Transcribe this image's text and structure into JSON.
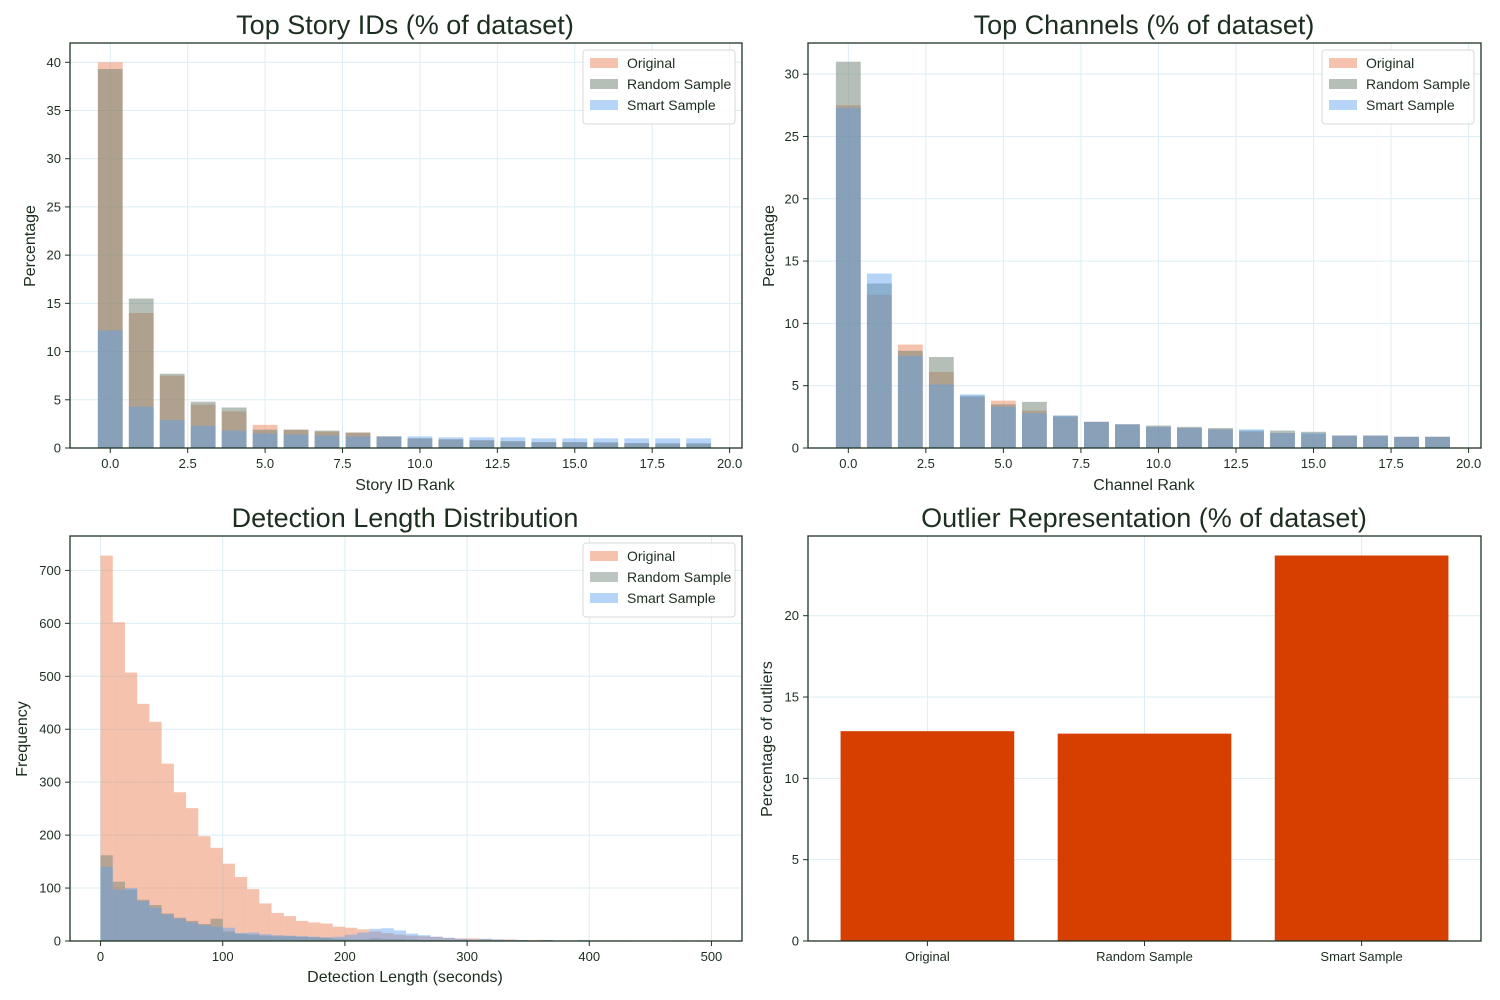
{
  "colors": {
    "original": "#e8784c",
    "random": "#6b7f70",
    "smart": "#5aa0ee",
    "outlier_bar": "#d63f00",
    "text": "#1c2e1f",
    "grid": "#dceef3",
    "frame": "#1f3324"
  },
  "chart_data": [
    {
      "id": "story",
      "type": "bar",
      "title": "Top Story IDs (% of dataset)",
      "xlabel": "Story ID Rank",
      "ylabel": "Percentage",
      "xlim": [
        -1.3,
        20.4
      ],
      "ylim": [
        0,
        42
      ],
      "xticks": [
        0,
        2.5,
        5,
        7.5,
        10,
        12.5,
        15,
        17.5,
        20
      ],
      "xtick_labels": [
        "0.0",
        "2.5",
        "5.0",
        "7.5",
        "10.0",
        "12.5",
        "15.0",
        "17.5",
        "20.0"
      ],
      "yticks": [
        0,
        5,
        10,
        15,
        20,
        25,
        30,
        35,
        40
      ],
      "ytick_labels": [
        "0",
        "5",
        "10",
        "15",
        "20",
        "25",
        "30",
        "35",
        "40"
      ],
      "bar_width": 0.8,
      "grid": true,
      "legend": "top-right",
      "x": [
        0,
        1,
        2,
        3,
        4,
        5,
        6,
        7,
        8,
        9,
        10,
        11,
        12,
        13,
        14,
        15,
        16,
        17,
        18,
        19
      ],
      "series": [
        {
          "name": "Original",
          "color_key": "original",
          "opacity": 0.45,
          "values": [
            40.0,
            14.0,
            7.5,
            4.5,
            3.8,
            2.4,
            1.9,
            1.7,
            1.6,
            1.2,
            1.0,
            0.9,
            0.8,
            0.7,
            0.6,
            0.6,
            0.5,
            0.5,
            0.4,
            0.4
          ]
        },
        {
          "name": "Random Sample",
          "color_key": "random",
          "opacity": 0.5,
          "values": [
            39.3,
            15.5,
            7.7,
            4.8,
            4.2,
            1.9,
            1.9,
            1.8,
            1.6,
            1.2,
            1.0,
            0.9,
            0.8,
            0.7,
            0.6,
            0.6,
            0.6,
            0.5,
            0.5,
            0.5
          ]
        },
        {
          "name": "Smart Sample",
          "color_key": "smart",
          "opacity": 0.45,
          "values": [
            12.2,
            4.3,
            2.9,
            2.3,
            1.8,
            1.5,
            1.4,
            1.3,
            1.2,
            1.2,
            1.2,
            1.1,
            1.1,
            1.1,
            1.0,
            1.0,
            1.0,
            1.0,
            1.0,
            1.0
          ]
        }
      ]
    },
    {
      "id": "channel",
      "type": "bar",
      "title": "Top Channels (% of dataset)",
      "xlabel": "Channel Rank",
      "ylabel": "Percentage",
      "xlim": [
        -1.3,
        20.4
      ],
      "ylim": [
        0,
        32.5
      ],
      "xticks": [
        0,
        2.5,
        5,
        7.5,
        10,
        12.5,
        15,
        17.5,
        20
      ],
      "xtick_labels": [
        "0.0",
        "2.5",
        "5.0",
        "7.5",
        "10.0",
        "12.5",
        "15.0",
        "17.5",
        "20.0"
      ],
      "yticks": [
        0,
        5,
        10,
        15,
        20,
        25,
        30
      ],
      "ytick_labels": [
        "0",
        "5",
        "10",
        "15",
        "20",
        "25",
        "30"
      ],
      "bar_width": 0.8,
      "grid": true,
      "legend": "top-right",
      "x": [
        0,
        1,
        2,
        3,
        4,
        5,
        6,
        7,
        8,
        9,
        10,
        11,
        12,
        13,
        14,
        15,
        16,
        17,
        18,
        19
      ],
      "series": [
        {
          "name": "Original",
          "color_key": "original",
          "opacity": 0.45,
          "values": [
            27.5,
            12.3,
            8.3,
            6.1,
            4.1,
            3.8,
            3.0,
            2.5,
            2.1,
            1.9,
            1.7,
            1.6,
            1.5,
            1.3,
            1.2,
            1.1,
            1.0,
            1.0,
            0.9,
            0.9
          ]
        },
        {
          "name": "Random Sample",
          "color_key": "random",
          "opacity": 0.5,
          "values": [
            31.0,
            13.2,
            7.8,
            7.3,
            4.2,
            3.5,
            3.7,
            2.6,
            2.1,
            1.9,
            1.8,
            1.7,
            1.6,
            1.4,
            1.4,
            1.3,
            1.0,
            1.0,
            0.9,
            0.9
          ]
        },
        {
          "name": "Smart Sample",
          "color_key": "smart",
          "opacity": 0.45,
          "values": [
            27.3,
            14.0,
            7.4,
            5.1,
            4.3,
            3.3,
            2.8,
            2.6,
            2.1,
            1.9,
            1.7,
            1.6,
            1.5,
            1.5,
            1.2,
            1.2,
            1.0,
            1.0,
            0.9,
            0.9
          ]
        }
      ]
    },
    {
      "id": "detection",
      "type": "histogram",
      "title": "Detection Length Distribution",
      "xlabel": "Detection Length (seconds)",
      "ylabel": "Frequency",
      "xlim": [
        -25,
        525
      ],
      "ylim": [
        0,
        765
      ],
      "xticks": [
        0,
        100,
        200,
        300,
        400,
        500
      ],
      "xtick_labels": [
        "0",
        "100",
        "200",
        "300",
        "400",
        "500"
      ],
      "yticks": [
        0,
        100,
        200,
        300,
        400,
        500,
        600,
        700
      ],
      "ytick_labels": [
        "0",
        "100",
        "200",
        "300",
        "400",
        "500",
        "600",
        "700"
      ],
      "bin_start": 0,
      "bin_width": 10,
      "grid": true,
      "legend": "top-right",
      "series": [
        {
          "name": "Original",
          "color_key": "original",
          "opacity": 0.45,
          "values": [
            728,
            602,
            507,
            448,
            414,
            335,
            281,
            251,
            198,
            176,
            146,
            121,
            98,
            71,
            53,
            47,
            38,
            35,
            33,
            27,
            25,
            22,
            18,
            15,
            12,
            10,
            9,
            8,
            6,
            5,
            5,
            4,
            3,
            3,
            2,
            2,
            2,
            1,
            1,
            1,
            1,
            1,
            1,
            0,
            0,
            0,
            0,
            1,
            0,
            1
          ]
        },
        {
          "name": "Random Sample",
          "color_key": "random",
          "opacity": 0.45,
          "values": [
            162,
            112,
            97,
            78,
            68,
            52,
            44,
            38,
            32,
            42,
            18,
            14,
            12,
            10,
            9,
            9,
            8,
            7,
            6,
            4,
            3,
            3,
            5,
            4,
            4,
            3,
            2,
            2,
            1,
            2,
            1,
            1,
            1,
            0,
            1,
            0,
            1,
            0,
            0,
            0,
            0,
            0,
            0,
            0,
            0,
            0,
            0,
            0,
            0,
            0
          ]
        },
        {
          "name": "Smart Sample",
          "color_key": "smart",
          "opacity": 0.45,
          "values": [
            140,
            97,
            100,
            75,
            63,
            50,
            42,
            35,
            30,
            27,
            25,
            15,
            16,
            13,
            11,
            10,
            9,
            8,
            7,
            8,
            12,
            16,
            23,
            24,
            20,
            14,
            11,
            8,
            6,
            4,
            3,
            4,
            3,
            2,
            2,
            1,
            2,
            1,
            1,
            2,
            1,
            1,
            1,
            1,
            0,
            0,
            0,
            0,
            0,
            1
          ]
        }
      ]
    },
    {
      "id": "outlier",
      "type": "bar",
      "title": "Outlier Representation (% of dataset)",
      "xlabel": "",
      "ylabel": "Percentage of outliers",
      "ylim": [
        0,
        24.9
      ],
      "yticks": [
        0,
        5,
        10,
        15,
        20
      ],
      "ytick_labels": [
        "0",
        "5",
        "10",
        "15",
        "20"
      ],
      "grid": true,
      "categories": [
        "Original",
        "Random Sample",
        "Smart Sample"
      ],
      "values": [
        12.9,
        12.75,
        23.7
      ],
      "color_key": "outlier_bar"
    }
  ]
}
